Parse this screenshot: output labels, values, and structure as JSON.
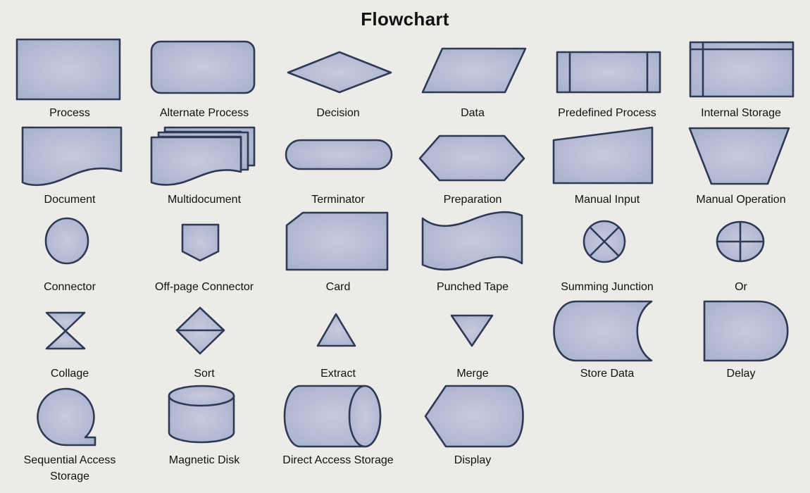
{
  "title": "Flowchart",
  "symbols": [
    {
      "label": "Process"
    },
    {
      "label": "Alternate Process"
    },
    {
      "label": "Decision"
    },
    {
      "label": "Data"
    },
    {
      "label": "Predefined Process"
    },
    {
      "label": "Internal Storage"
    },
    {
      "label": "Document"
    },
    {
      "label": "Multidocument"
    },
    {
      "label": "Terminator"
    },
    {
      "label": "Preparation"
    },
    {
      "label": "Manual Input"
    },
    {
      "label": "Manual Operation"
    },
    {
      "label": "Connector"
    },
    {
      "label": "Off-page Connector"
    },
    {
      "label": "Card"
    },
    {
      "label": "Punched Tape"
    },
    {
      "label": "Summing Junction"
    },
    {
      "label": "Or"
    },
    {
      "label": "Collage"
    },
    {
      "label": "Sort"
    },
    {
      "label": "Extract"
    },
    {
      "label": "Merge"
    },
    {
      "label": "Store Data"
    },
    {
      "label": "Delay"
    },
    {
      "label": "Sequential Access Storage"
    },
    {
      "label": "Magnetic Disk"
    },
    {
      "label": "Direct Access Storage"
    },
    {
      "label": "Display"
    }
  ],
  "colors": {
    "fill": "#b8bfd6",
    "stroke": "#2e3a55",
    "background": "#edebe8"
  }
}
